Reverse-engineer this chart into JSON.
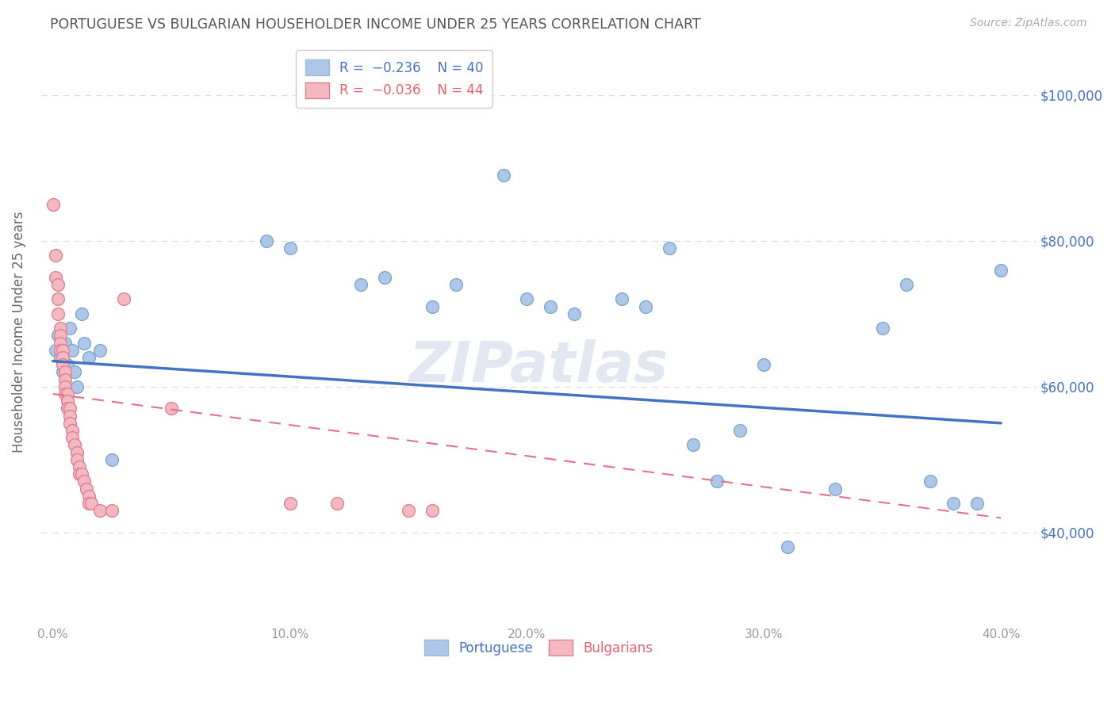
{
  "title": "PORTUGUESE VS BULGARIAN HOUSEHOLDER INCOME UNDER 25 YEARS CORRELATION CHART",
  "source": "Source: ZipAtlas.com",
  "xlabel_ticks": [
    "0.0%",
    "10.0%",
    "20.0%",
    "30.0%",
    "40.0%"
  ],
  "xlabel_tick_vals": [
    0.0,
    0.1,
    0.2,
    0.3,
    0.4
  ],
  "ylabel_tick_vals": [
    40000,
    60000,
    80000,
    100000
  ],
  "xlim": [
    -0.005,
    0.415
  ],
  "ylim": [
    28000,
    107000
  ],
  "ylabel": "Householder Income Under 25 years",
  "portuguese_points": [
    [
      0.001,
      65000
    ],
    [
      0.002,
      67000
    ],
    [
      0.003,
      64000
    ],
    [
      0.004,
      62000
    ],
    [
      0.005,
      66000
    ],
    [
      0.006,
      63000
    ],
    [
      0.007,
      68000
    ],
    [
      0.008,
      65000
    ],
    [
      0.009,
      62000
    ],
    [
      0.01,
      60000
    ],
    [
      0.012,
      70000
    ],
    [
      0.013,
      66000
    ],
    [
      0.015,
      64000
    ],
    [
      0.02,
      65000
    ],
    [
      0.025,
      50000
    ],
    [
      0.09,
      80000
    ],
    [
      0.1,
      79000
    ],
    [
      0.13,
      74000
    ],
    [
      0.14,
      75000
    ],
    [
      0.16,
      71000
    ],
    [
      0.17,
      74000
    ],
    [
      0.19,
      89000
    ],
    [
      0.2,
      72000
    ],
    [
      0.21,
      71000
    ],
    [
      0.22,
      70000
    ],
    [
      0.24,
      72000
    ],
    [
      0.25,
      71000
    ],
    [
      0.26,
      79000
    ],
    [
      0.27,
      52000
    ],
    [
      0.28,
      47000
    ],
    [
      0.29,
      54000
    ],
    [
      0.3,
      63000
    ],
    [
      0.31,
      38000
    ],
    [
      0.33,
      46000
    ],
    [
      0.35,
      68000
    ],
    [
      0.36,
      74000
    ],
    [
      0.37,
      47000
    ],
    [
      0.38,
      44000
    ],
    [
      0.39,
      44000
    ],
    [
      0.4,
      76000
    ]
  ],
  "bulgarian_points": [
    [
      0.0,
      85000
    ],
    [
      0.001,
      78000
    ],
    [
      0.001,
      75000
    ],
    [
      0.002,
      74000
    ],
    [
      0.002,
      72000
    ],
    [
      0.002,
      70000
    ],
    [
      0.003,
      68000
    ],
    [
      0.003,
      67000
    ],
    [
      0.003,
      66000
    ],
    [
      0.003,
      65000
    ],
    [
      0.004,
      65000
    ],
    [
      0.004,
      64000
    ],
    [
      0.004,
      63000
    ],
    [
      0.005,
      62000
    ],
    [
      0.005,
      61000
    ],
    [
      0.005,
      60000
    ],
    [
      0.005,
      59000
    ],
    [
      0.006,
      59000
    ],
    [
      0.006,
      58000
    ],
    [
      0.006,
      57000
    ],
    [
      0.007,
      57000
    ],
    [
      0.007,
      56000
    ],
    [
      0.007,
      55000
    ],
    [
      0.008,
      54000
    ],
    [
      0.008,
      53000
    ],
    [
      0.009,
      52000
    ],
    [
      0.01,
      51000
    ],
    [
      0.01,
      50000
    ],
    [
      0.011,
      49000
    ],
    [
      0.011,
      48000
    ],
    [
      0.012,
      48000
    ],
    [
      0.013,
      47000
    ],
    [
      0.014,
      46000
    ],
    [
      0.015,
      45000
    ],
    [
      0.015,
      44000
    ],
    [
      0.016,
      44000
    ],
    [
      0.02,
      43000
    ],
    [
      0.025,
      43000
    ],
    [
      0.03,
      72000
    ],
    [
      0.05,
      57000
    ],
    [
      0.1,
      44000
    ],
    [
      0.12,
      44000
    ],
    [
      0.15,
      43000
    ],
    [
      0.16,
      43000
    ]
  ],
  "blue_line": {
    "x0": 0.0,
    "y0": 63500,
    "x1": 0.4,
    "y1": 55000
  },
  "pink_line": {
    "x0": 0.0,
    "y0": 59000,
    "x1": 0.4,
    "y1": 42000
  },
  "watermark": "ZIPatlas",
  "background_color": "#ffffff",
  "grid_color": "#cccccc",
  "title_color": "#555555",
  "right_tick_color": "#4472c4"
}
